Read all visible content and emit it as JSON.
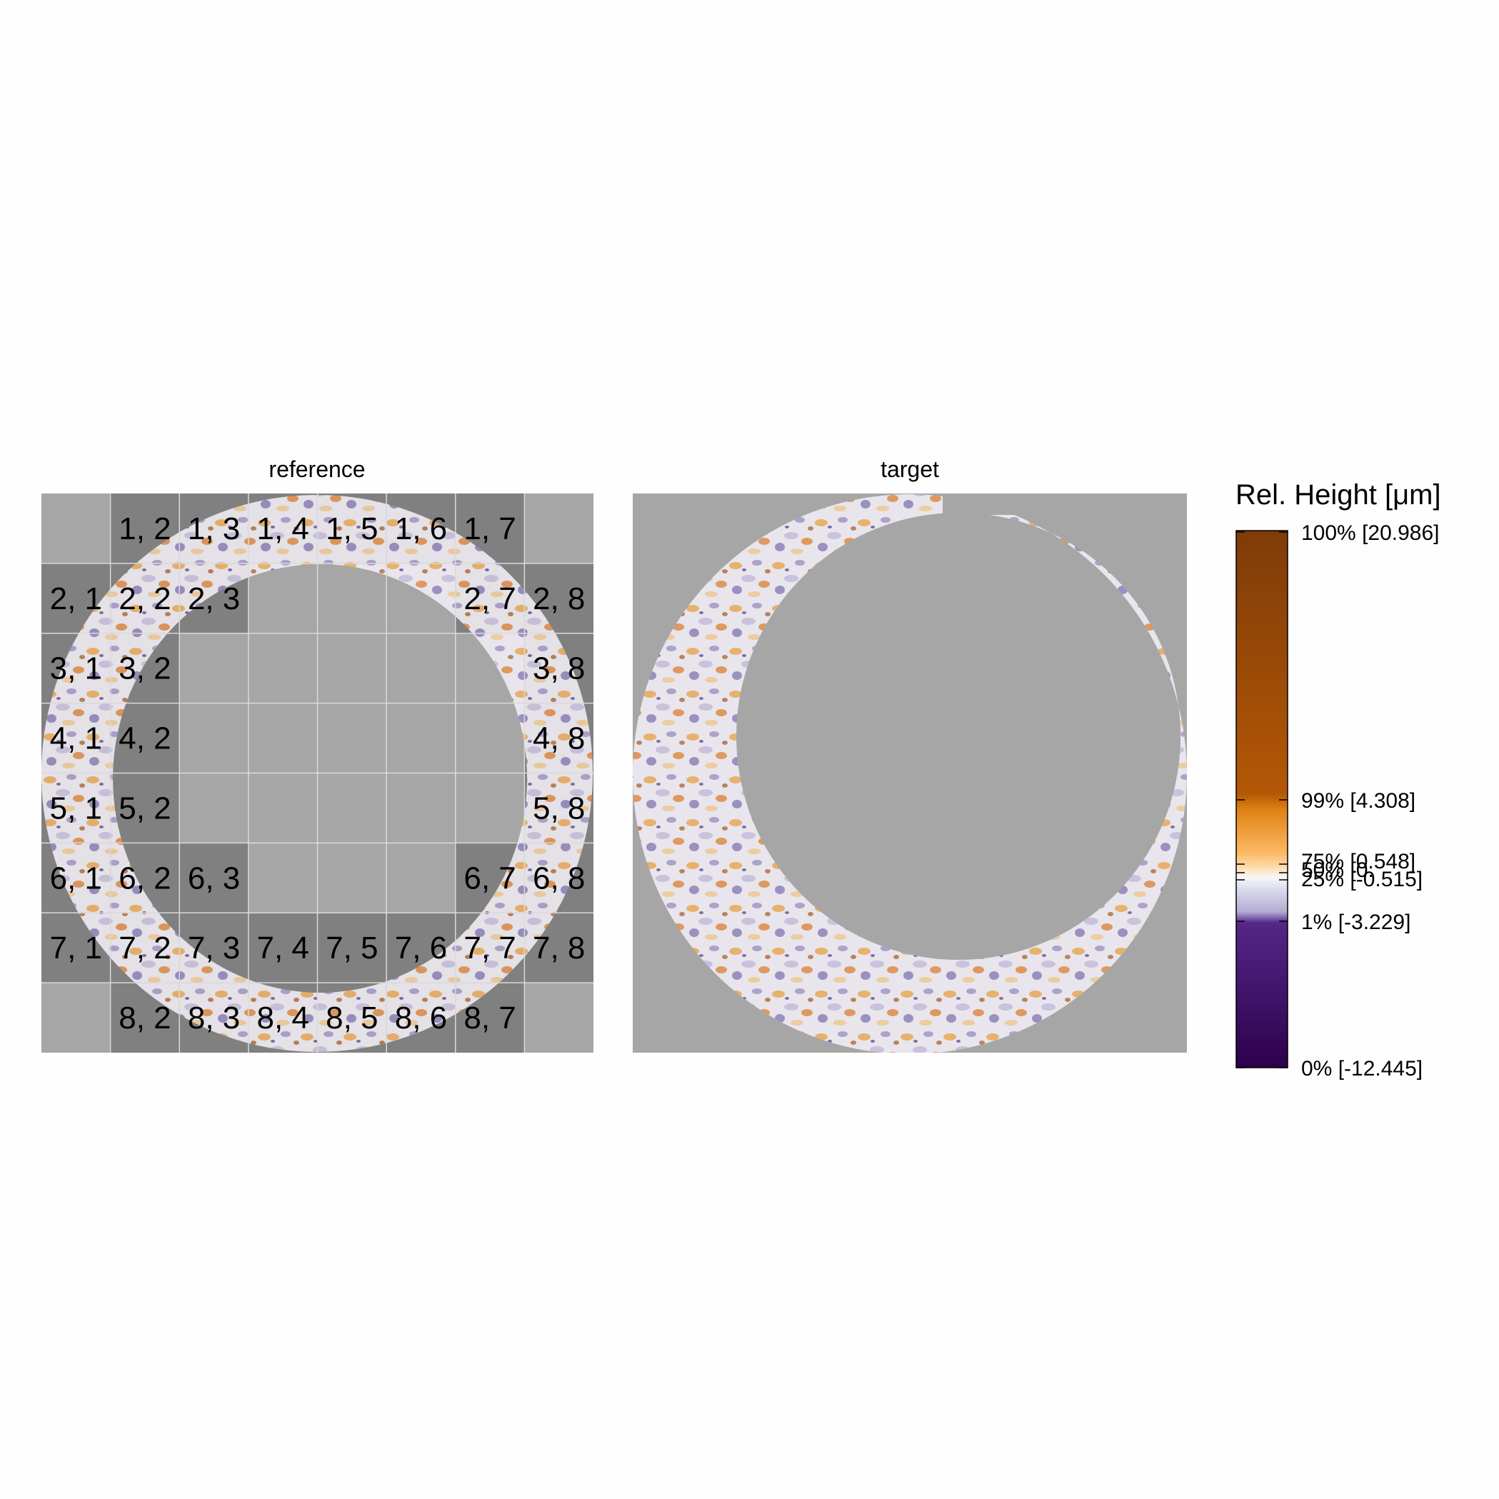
{
  "panels": {
    "reference": {
      "title": "reference"
    },
    "target": {
      "title": "target"
    }
  },
  "grid": {
    "rows": 8,
    "cols": 8,
    "labels": [
      [
        "",
        "1, 2",
        "1, 3",
        "1, 4",
        "1, 5",
        "1, 6",
        "1, 7",
        ""
      ],
      [
        "2, 1",
        "2, 2",
        "2, 3",
        "",
        "",
        "",
        "2, 7",
        "2, 8"
      ],
      [
        "3, 1",
        "3, 2",
        "",
        "",
        "",
        "",
        "",
        "3, 8"
      ],
      [
        "4, 1",
        "4, 2",
        "",
        "",
        "",
        "",
        "",
        "4, 8"
      ],
      [
        "5, 1",
        "5, 2",
        "",
        "",
        "",
        "",
        "",
        "5, 8"
      ],
      [
        "6, 1",
        "6, 2",
        "6, 3",
        "",
        "",
        "",
        "6, 7",
        "6, 8"
      ],
      [
        "7, 1",
        "7, 2",
        "7, 3",
        "7, 4",
        "7, 5",
        "7, 6",
        "7, 7",
        "7, 8"
      ],
      [
        "",
        "8, 2",
        "8, 3",
        "8, 4",
        "8, 5",
        "8, 6",
        "8, 7",
        ""
      ]
    ]
  },
  "legend": {
    "title": "Rel. Height [μm]",
    "ticks": [
      {
        "label": "100% [20.986]",
        "percentile": 100,
        "value": 20.986
      },
      {
        "label": "99% [4.308]",
        "percentile": 99,
        "value": 4.308
      },
      {
        "label": "75% [0.548]",
        "percentile": 75,
        "value": 0.548
      },
      {
        "label": "50% [0.",
        "percentile": 50
      },
      {
        "label": "25% [-0.515]",
        "percentile": 25,
        "value": -0.515
      },
      {
        "label": "1% [-3.229]",
        "percentile": 1,
        "value": -3.229
      },
      {
        "label": "0% [-12.445]",
        "percentile": 0,
        "value": -12.445
      }
    ]
  },
  "colors": {
    "background": "#fefefe",
    "mask": "#a6a6a6",
    "active_cell": "#808080",
    "high": "#7f3b08",
    "mid_high": "#e08214",
    "mid": "#f7f7f7",
    "mid_low": "#b2abd2",
    "low": "#2d004b"
  }
}
